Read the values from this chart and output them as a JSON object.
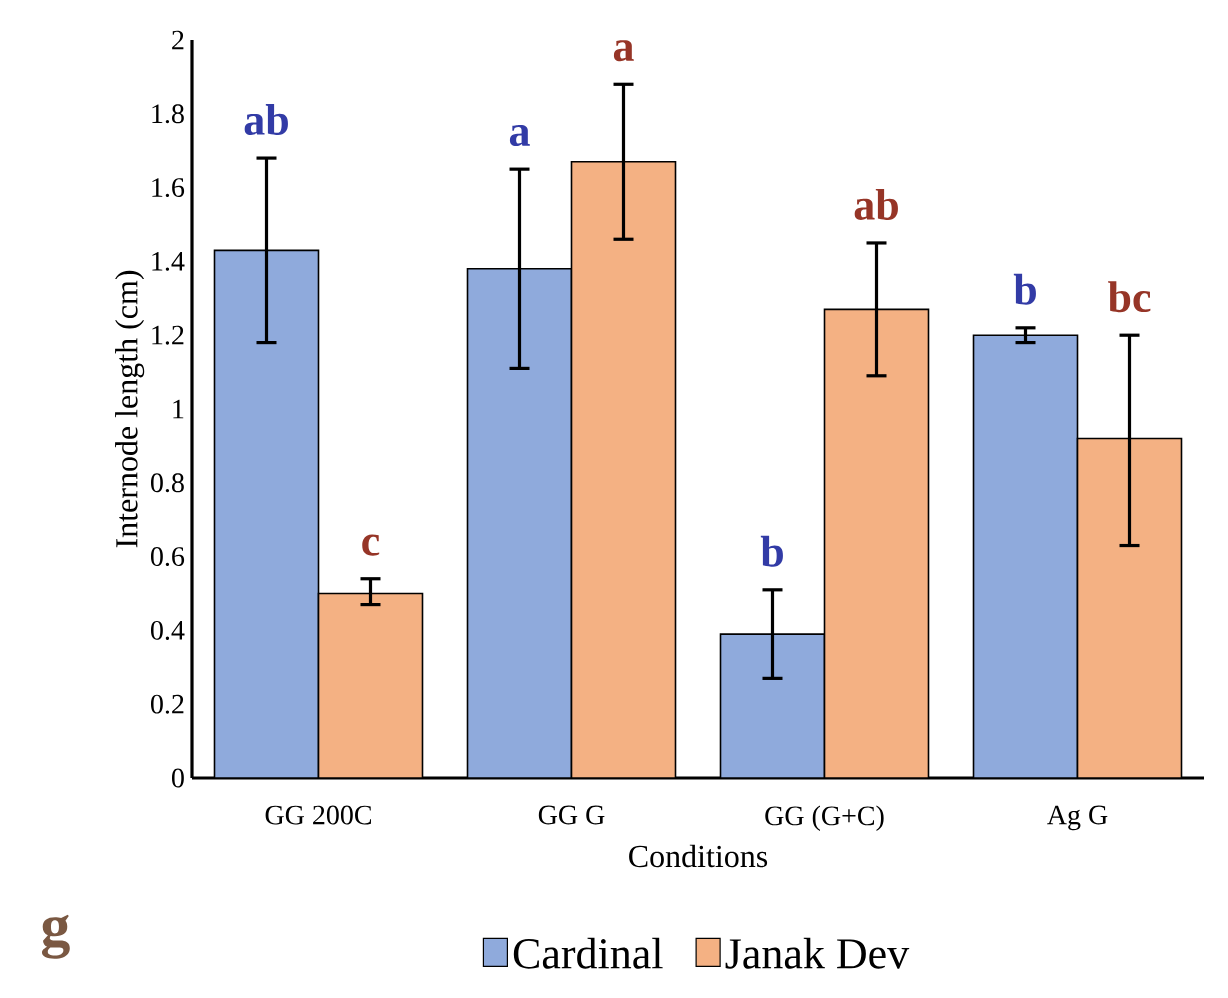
{
  "chart_data": {
    "type": "bar",
    "xlabel": "Conditions",
    "ylabel": "Internode length (cm)",
    "categories": [
      "GG 200C",
      "GG G",
      "GG (G+C)",
      "Ag G"
    ],
    "series": [
      {
        "name": "Cardinal",
        "color": "#8faadc",
        "values": [
          1.43,
          1.38,
          0.39,
          1.2
        ],
        "errors": [
          [
            1.18,
            1.68
          ],
          [
            1.11,
            1.65
          ],
          [
            0.27,
            0.51
          ],
          [
            1.18,
            1.22
          ]
        ]
      },
      {
        "name": "Janak Dev",
        "color": "#f4b183",
        "values": [
          0.5,
          1.67,
          1.27,
          0.92
        ],
        "errors": [
          [
            0.47,
            0.54
          ],
          [
            1.46,
            1.88
          ],
          [
            1.09,
            1.45
          ],
          [
            0.63,
            1.2
          ]
        ]
      }
    ],
    "annotations": [
      "ab",
      "c",
      "a",
      "a",
      "b",
      "ab",
      "b",
      "bc",
      "g"
    ],
    "ylim": [
      0,
      2
    ],
    "yticks": [
      0,
      0.2,
      0.4,
      0.6,
      0.8,
      1,
      1.2,
      1.4,
      1.6,
      1.8,
      2
    ],
    "grid": false,
    "legend": "bottom"
  }
}
